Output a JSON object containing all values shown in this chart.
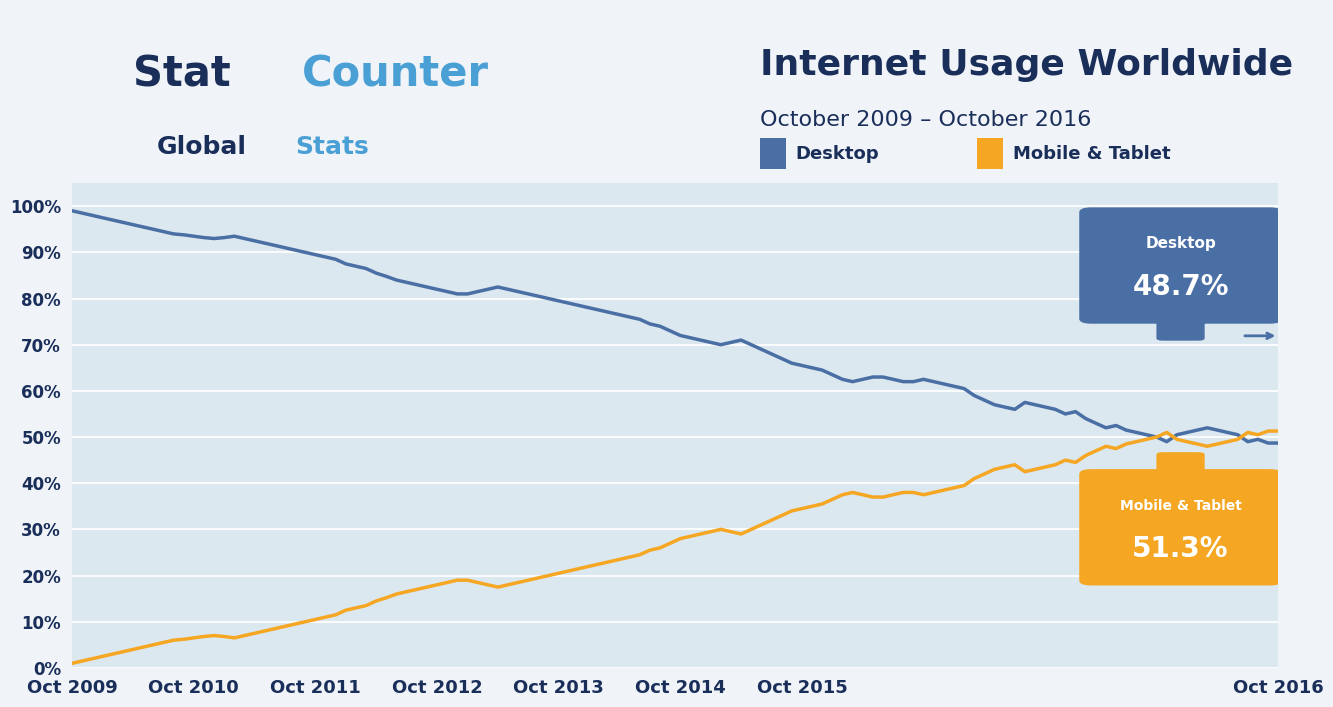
{
  "title": "Internet Usage Worldwide",
  "subtitle": "October 2009 – October 2016",
  "bg_color": "#f0f4f8",
  "plot_bg_color": "#dce8f0",
  "border_color": "#ffffff",
  "x_labels": [
    "Oct 2009",
    "Oct 2010",
    "Oct 2011",
    "Oct 2012",
    "Oct 2013",
    "Oct 2014",
    "Oct 2015",
    "Oct 2016"
  ],
  "y_ticks": [
    0,
    10,
    20,
    30,
    40,
    50,
    60,
    70,
    80,
    90,
    100
  ],
  "desktop_color": "#4a6fa5",
  "mobile_color": "#f5a623",
  "desktop_label": "Desktop",
  "mobile_label": "Mobile & Tablet",
  "desktop_final": "48.7%",
  "mobile_final": "51.3%",
  "desktop_box_color": "#4a6fa5",
  "mobile_box_color": "#f5a623",
  "desktop_data": [
    99.0,
    98.5,
    98.0,
    97.5,
    97.0,
    96.5,
    96.0,
    95.5,
    95.0,
    94.5,
    94.0,
    93.8,
    93.5,
    93.2,
    93.0,
    93.2,
    93.5,
    93.0,
    92.5,
    92.0,
    91.5,
    91.0,
    90.5,
    90.0,
    89.5,
    89.0,
    88.5,
    87.5,
    87.0,
    86.5,
    85.5,
    84.8,
    84.0,
    83.5,
    83.0,
    82.5,
    82.0,
    81.5,
    81.0,
    81.0,
    81.5,
    82.0,
    82.5,
    82.0,
    81.5,
    81.0,
    80.5,
    80.0,
    79.5,
    79.0,
    78.5,
    78.0,
    77.5,
    77.0,
    76.5,
    76.0,
    75.5,
    74.5,
    74.0,
    73.0,
    72.0,
    71.5,
    71.0,
    70.5,
    70.0,
    70.5,
    71.0,
    70.0,
    69.0,
    68.0,
    67.0,
    66.0,
    65.5,
    65.0,
    64.5,
    63.5,
    62.5,
    62.0,
    62.5,
    63.0,
    63.0,
    62.5,
    62.0,
    62.0,
    62.5,
    62.0,
    61.5,
    61.0,
    60.5,
    59.0,
    58.0,
    57.0,
    56.5,
    56.0,
    57.5,
    57.0,
    56.5,
    56.0,
    55.0,
    55.5,
    54.0,
    53.0,
    52.0,
    52.5,
    51.5,
    51.0,
    50.5,
    50.0,
    49.0,
    50.5,
    51.0,
    51.5,
    52.0,
    51.5,
    51.0,
    50.5,
    49.0,
    49.5,
    48.7,
    48.7
  ],
  "mobile_data": [
    1.0,
    1.5,
    2.0,
    2.5,
    3.0,
    3.5,
    4.0,
    4.5,
    5.0,
    5.5,
    6.0,
    6.2,
    6.5,
    6.8,
    7.0,
    6.8,
    6.5,
    7.0,
    7.5,
    8.0,
    8.5,
    9.0,
    9.5,
    10.0,
    10.5,
    11.0,
    11.5,
    12.5,
    13.0,
    13.5,
    14.5,
    15.2,
    16.0,
    16.5,
    17.0,
    17.5,
    18.0,
    18.5,
    19.0,
    19.0,
    18.5,
    18.0,
    17.5,
    18.0,
    18.5,
    19.0,
    19.5,
    20.0,
    20.5,
    21.0,
    21.5,
    22.0,
    22.5,
    23.0,
    23.5,
    24.0,
    24.5,
    25.5,
    26.0,
    27.0,
    28.0,
    28.5,
    29.0,
    29.5,
    30.0,
    29.5,
    29.0,
    30.0,
    31.0,
    32.0,
    33.0,
    34.0,
    34.5,
    35.0,
    35.5,
    36.5,
    37.5,
    38.0,
    37.5,
    37.0,
    37.0,
    37.5,
    38.0,
    38.0,
    37.5,
    38.0,
    38.5,
    39.0,
    39.5,
    41.0,
    42.0,
    43.0,
    43.5,
    44.0,
    42.5,
    43.0,
    43.5,
    44.0,
    45.0,
    44.5,
    46.0,
    47.0,
    48.0,
    47.5,
    48.5,
    49.0,
    49.5,
    50.0,
    51.0,
    49.5,
    49.0,
    48.5,
    48.0,
    48.5,
    49.0,
    49.5,
    51.0,
    50.5,
    51.3,
    51.3
  ],
  "title_color": "#1a2e5a",
  "subtitle_color": "#1a2e5a",
  "axis_label_color": "#1a2e5a",
  "legend_desktop_color": "#4a6fa5",
  "legend_mobile_color": "#f5a623"
}
